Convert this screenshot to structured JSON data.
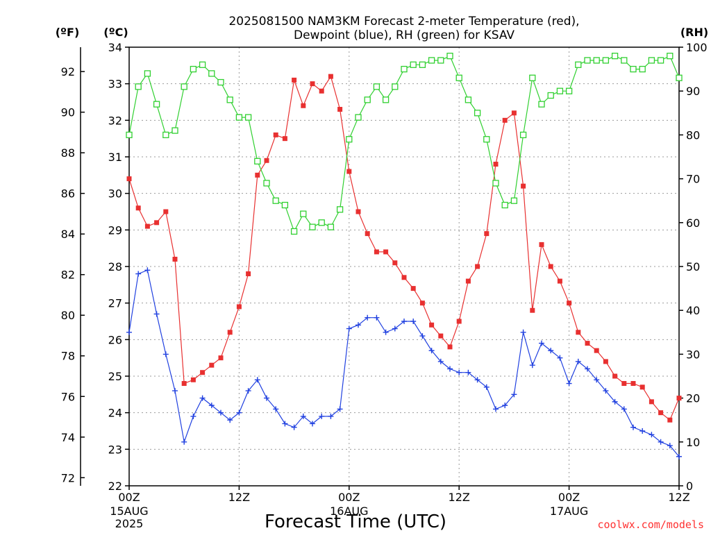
{
  "chart_data": {
    "type": "line",
    "title": [
      "2025081500 NAM3KM Forecast 2-meter Temperature (red),",
      "Dewpoint (blue), RH (green) for KSAV"
    ],
    "xlabel": "Forecast Time (UTC)",
    "units": {
      "fahrenheit": "(ºF)",
      "celsius": "(ºC)",
      "rh": "(RH)"
    },
    "credit": "coolwx.com/models",
    "x_range_hours": [
      0,
      60
    ],
    "x_ticks": [
      {
        "hour": 0,
        "label": "00Z",
        "sub": [
          "15AUG",
          "2025"
        ]
      },
      {
        "hour": 12,
        "label": "12Z",
        "sub": []
      },
      {
        "hour": 24,
        "label": "00Z",
        "sub": [
          "16AUG"
        ]
      },
      {
        "hour": 36,
        "label": "12Z",
        "sub": []
      },
      {
        "hour": 48,
        "label": "00Z",
        "sub": [
          "17AUG"
        ]
      },
      {
        "hour": 60,
        "label": "12Z",
        "sub": []
      }
    ],
    "celsius_axis": {
      "range": [
        22,
        34
      ],
      "ticks": [
        22,
        23,
        24,
        25,
        26,
        27,
        28,
        29,
        30,
        31,
        32,
        33,
        34
      ]
    },
    "fahrenheit_axis": {
      "ticks": [
        72,
        74,
        76,
        78,
        80,
        82,
        84,
        86,
        88,
        90,
        92
      ]
    },
    "rh_axis": {
      "range": [
        0,
        100
      ],
      "ticks": [
        0,
        10,
        20,
        30,
        40,
        50,
        60,
        70,
        80,
        90,
        100
      ]
    },
    "grid": true,
    "series": [
      {
        "key": "temperature",
        "unit": "C",
        "color": "#e83030",
        "marker": "filled-square",
        "values": [
          30.4,
          29.6,
          29.1,
          29.2,
          29.5,
          28.2,
          24.8,
          24.9,
          25.1,
          25.3,
          25.5,
          26.2,
          26.9,
          27.8,
          30.5,
          30.9,
          31.6,
          31.5,
          33.1,
          32.4,
          33.0,
          32.8,
          33.2,
          32.3,
          30.6,
          29.5,
          28.9,
          28.4,
          28.4,
          28.1,
          27.7,
          27.4,
          27.0,
          26.4,
          26.1,
          25.8,
          26.5,
          27.6,
          28.0,
          28.9,
          30.8,
          32.0,
          32.2,
          30.2,
          26.8,
          28.6,
          28.0,
          27.6,
          27.0,
          26.2,
          25.9,
          25.7,
          25.4,
          25.0,
          24.8,
          24.8,
          24.7,
          24.3,
          24.0,
          23.8,
          24.4
        ]
      },
      {
        "key": "dewpoint",
        "unit": "C",
        "color": "#2040e0",
        "marker": "plus",
        "values": [
          26.2,
          27.8,
          27.9,
          26.7,
          25.6,
          24.6,
          23.2,
          23.9,
          24.4,
          24.2,
          24.0,
          23.8,
          24.0,
          24.6,
          24.9,
          24.4,
          24.1,
          23.7,
          23.6,
          23.9,
          23.7,
          23.9,
          23.9,
          24.1,
          26.3,
          26.4,
          26.6,
          26.6,
          26.2,
          26.3,
          26.5,
          26.5,
          26.1,
          25.7,
          25.4,
          25.2,
          25.1,
          25.1,
          24.9,
          24.7,
          24.1,
          24.2,
          24.5,
          26.2,
          25.3,
          25.9,
          25.7,
          25.5,
          24.8,
          25.4,
          25.2,
          24.9,
          24.6,
          24.3,
          24.1,
          23.6,
          23.5,
          23.4,
          23.2,
          23.1,
          22.8
        ]
      },
      {
        "key": "rh",
        "unit": "%",
        "color": "#30d030",
        "marker": "open-square",
        "values": [
          80,
          91,
          94,
          87,
          80,
          81,
          91,
          95,
          96,
          94,
          92,
          88,
          84,
          84,
          74,
          69,
          65,
          64,
          58,
          62,
          59,
          60,
          59,
          63,
          79,
          84,
          88,
          91,
          88,
          91,
          95,
          96,
          96,
          97,
          97,
          98,
          93,
          88,
          85,
          79,
          69,
          64,
          65,
          80,
          93,
          87,
          89,
          90,
          90,
          96,
          97,
          97,
          97,
          98,
          97,
          95,
          95,
          97,
          97,
          98,
          93
        ]
      }
    ]
  }
}
